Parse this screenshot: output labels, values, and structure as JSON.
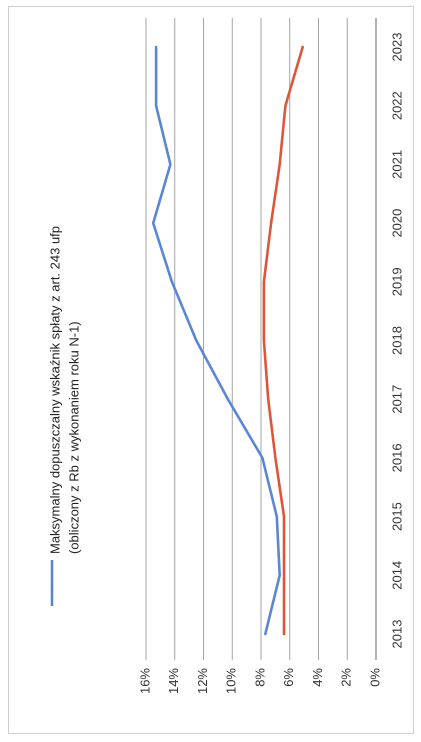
{
  "chart_data": {
    "type": "line",
    "x": [
      "2013",
      "2014",
      "2015",
      "2016",
      "2017",
      "2018",
      "2019",
      "2020",
      "2021",
      "2022",
      "2023"
    ],
    "ylim": [
      0,
      16
    ],
    "y_ticks": [
      "0%",
      "2%",
      "4%",
      "6%",
      "8%",
      "10%",
      "12%",
      "14%",
      "16%"
    ],
    "grid": true,
    "orientation": "rotated-90-clockwise",
    "legend_position": "top-left",
    "series": [
      {
        "name": "Maksymalny dopuszczalny wskaźnik spłaty z art. 243 ufp",
        "name_line2": "(obliczony z Rb z wykonaniem roku N-1)",
        "color": "#5b86d6",
        "values": [
          7.7,
          6.7,
          6.9,
          7.9,
          10.3,
          12.5,
          14.2,
          15.5,
          14.3,
          15.3,
          15.3
        ]
      },
      {
        "name": "",
        "color": "#e0553a",
        "values": [
          6.4,
          6.4,
          6.4,
          7.0,
          7.5,
          7.8,
          7.8,
          7.3,
          6.7,
          6.3,
          5.1
        ]
      }
    ],
    "colors": {
      "grid": "#9a9a9a",
      "axis": "#808080"
    }
  }
}
